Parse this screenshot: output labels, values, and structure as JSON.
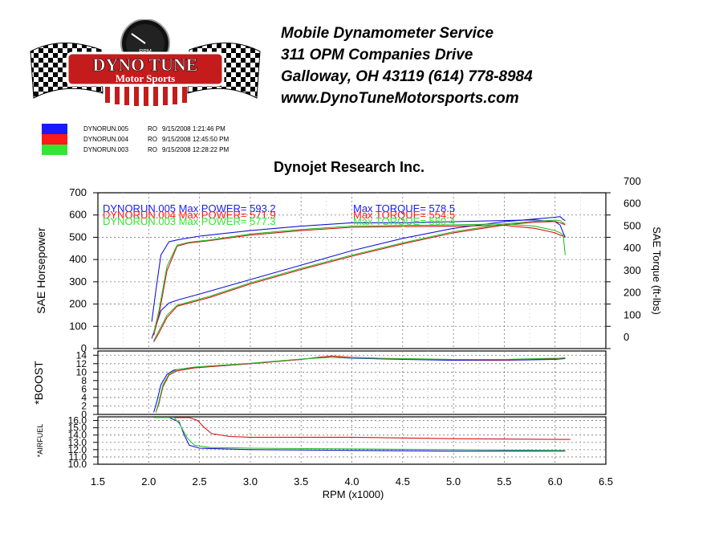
{
  "company": {
    "name": "Mobile Dynamometer Service",
    "address1": "311 OPM Companies Drive",
    "address2": "Galloway, OH  43119   (614)  778-8984",
    "website": "www.DynoTuneMotorsports.com"
  },
  "logo": {
    "line1": "DYNO TUNE",
    "line2": "Motor Sports",
    "gauge_label": "RPM",
    "gauge_ticks": [
      "0",
      "1",
      "2",
      "3",
      "4",
      "5",
      "6",
      "7",
      "8",
      "9",
      "10"
    ]
  },
  "legend": [
    {
      "run": "DYNORUN.005",
      "mode": "RO",
      "timestamp": "9/15/2008 1:21:46 PM",
      "color": "#1a1aff"
    },
    {
      "run": "DYNORUN.004",
      "mode": "RO",
      "timestamp": "9/15/2008 12:45:50 PM",
      "color": "#ff1a1a"
    },
    {
      "run": "DYNORUN.003",
      "mode": "RO",
      "timestamp": "9/15/2008 12:28:22 PM",
      "color": "#33e633"
    }
  ],
  "chart_data": {
    "type": "line",
    "title": "Dynojet  Research  Inc.",
    "xlabel": "RPM (x1000)",
    "x_ticks": [
      "1.5",
      "2.0",
      "2.5",
      "3.0",
      "3.5",
      "4.0",
      "4.5",
      "5.0",
      "5.5",
      "6.0",
      "6.5"
    ],
    "xlim": [
      1.5,
      6.5
    ],
    "colors": {
      "run005": "#1a1aff",
      "run004": "#ff1a1a",
      "run003": "#33e633"
    },
    "annotations": [
      {
        "text": "DYNORUN.005  Max POWER= 593.2",
        "torque": "Max TORQUE= 578.5",
        "color": "#1a1aff"
      },
      {
        "text": "DYNORUN.004  Max POWER= 571.9",
        "torque": "Max TORQUE= 554.5",
        "color": "#ff1a1a"
      },
      {
        "text": "DYNORUN.003  Max POWER= 577.3",
        "torque": "Max TORQUE= 560.4",
        "color": "#33e633"
      }
    ],
    "panels": [
      {
        "id": "power",
        "ylabel": "SAE Horsepower",
        "ylabel_right": "SAE Torque (ft-lbs)",
        "ylim": [
          0,
          700
        ],
        "y_ticks": [
          "0",
          "100",
          "200",
          "300",
          "400",
          "500",
          "600",
          "700"
        ],
        "series": [
          {
            "name": "DYNORUN.005",
            "kind": "torque",
            "x": [
              2.03,
              2.07,
              2.12,
              2.2,
              2.3,
              2.5,
              3.0,
              3.5,
              4.0,
              4.5,
              5.0,
              5.5,
              5.8,
              6.0,
              6.05,
              6.08,
              6.1
            ],
            "y": [
              120,
              260,
              420,
              480,
              490,
              505,
              530,
              550,
              565,
              565,
              570,
              575,
              578,
              570,
              555,
              520,
              500
            ]
          },
          {
            "name": "DYNORUN.005",
            "kind": "power",
            "x": [
              2.03,
              2.07,
              2.12,
              2.2,
              2.3,
              2.5,
              3.0,
              3.5,
              4.0,
              4.5,
              5.0,
              5.5,
              5.8,
              6.0,
              6.05,
              6.08,
              6.1
            ],
            "y": [
              45,
              100,
              170,
              205,
              220,
              245,
              310,
              375,
              440,
              495,
              540,
              570,
              582,
              590,
              593,
              580,
              575
            ]
          },
          {
            "name": "DYNORUN.004",
            "kind": "torque",
            "x": [
              2.05,
              2.1,
              2.18,
              2.28,
              2.4,
              2.6,
              3.0,
              3.5,
              4.0,
              4.5,
              5.0,
              5.5,
              5.8,
              6.0,
              6.05,
              6.08,
              6.1
            ],
            "y": [
              60,
              150,
              350,
              460,
              475,
              485,
              510,
              530,
              545,
              548,
              550,
              554,
              540,
              520,
              510,
              505,
              500
            ]
          },
          {
            "name": "DYNORUN.004",
            "kind": "power",
            "x": [
              2.05,
              2.1,
              2.18,
              2.28,
              2.4,
              2.6,
              3.0,
              3.5,
              4.0,
              4.5,
              5.0,
              5.5,
              5.8,
              6.0,
              6.05,
              6.08,
              6.1
            ],
            "y": [
              30,
              70,
              140,
              190,
              205,
              230,
              290,
              355,
              415,
              470,
              520,
              555,
              568,
              571,
              565,
              560,
              555
            ]
          },
          {
            "name": "DYNORUN.003",
            "kind": "torque",
            "x": [
              2.05,
              2.1,
              2.18,
              2.28,
              2.4,
              2.6,
              3.0,
              3.5,
              4.0,
              4.5,
              5.0,
              5.5,
              5.8,
              6.0,
              6.05,
              6.08,
              6.1
            ],
            "y": [
              70,
              170,
              370,
              465,
              478,
              488,
              515,
              535,
              550,
              553,
              556,
              560,
              550,
              530,
              520,
              510,
              420
            ]
          },
          {
            "name": "DYNORUN.003",
            "kind": "power",
            "x": [
              2.05,
              2.1,
              2.18,
              2.28,
              2.4,
              2.6,
              3.0,
              3.5,
              4.0,
              4.5,
              5.0,
              5.5,
              5.8,
              6.0,
              6.05,
              6.08,
              6.1
            ],
            "y": [
              35,
              80,
              150,
              195,
              210,
              235,
              295,
              360,
              420,
              475,
              525,
              560,
              572,
              577,
              575,
              565,
              560
            ]
          }
        ]
      },
      {
        "id": "boost",
        "ylabel": "*BOOST",
        "ylim": [
          0,
          15
        ],
        "y_ticks": [
          "0",
          "2",
          "4",
          "6",
          "8",
          "10",
          "12",
          "14"
        ],
        "series": [
          {
            "name": "DYNORUN.005",
            "x": [
              2.05,
              2.08,
              2.12,
              2.18,
              2.25,
              2.4,
              3.0,
              3.5,
              3.7,
              4.0,
              4.5,
              5.0,
              5.5,
              6.0,
              6.1
            ],
            "y": [
              0.5,
              3,
              7,
              9.5,
              10.5,
              11,
              12,
              13,
              13.6,
              13.3,
              13,
              12.8,
              12.8,
              13,
              13.2
            ]
          },
          {
            "name": "DYNORUN.004",
            "x": [
              2.07,
              2.1,
              2.14,
              2.2,
              2.28,
              2.45,
              3.0,
              3.5,
              3.8,
              4.0,
              4.5,
              5.0,
              5.5,
              6.0,
              6.1
            ],
            "y": [
              0.5,
              2.5,
              6.5,
              9.3,
              10.3,
              11,
              12,
              13,
              13.8,
              13.5,
              13.1,
              13,
              12.9,
              13.2,
              13.4
            ]
          },
          {
            "name": "DYNORUN.003",
            "x": [
              2.07,
              2.1,
              2.14,
              2.2,
              2.28,
              2.45,
              3.0,
              3.5,
              3.8,
              4.0,
              4.5,
              5.0,
              5.5,
              6.0,
              6.1
            ],
            "y": [
              0.5,
              3,
              7,
              9.6,
              10.6,
              11.2,
              12.1,
              13.1,
              13.5,
              13.4,
              13.2,
              13,
              13,
              13.3,
              13.3
            ]
          }
        ]
      },
      {
        "id": "airfuel",
        "ylabel": "*AIRFUEL",
        "ylim": [
          10,
          16.5
        ],
        "y_ticks": [
          "10.0",
          "11.0",
          "12.0",
          "13.0",
          "14.0",
          "15.0",
          "16.0"
        ],
        "series": [
          {
            "name": "DYNORUN.005",
            "x": [
              2.05,
              2.2,
              2.3,
              2.35,
              2.4,
              2.5,
              3.0,
              4.0,
              5.0,
              6.0,
              6.1
            ],
            "y": [
              16.4,
              16.4,
              15.8,
              14,
              12.6,
              12.2,
              12.0,
              11.9,
              11.8,
              11.8,
              11.8
            ]
          },
          {
            "name": "DYNORUN.004",
            "x": [
              2.05,
              2.4,
              2.48,
              2.55,
              2.62,
              2.8,
              3.0,
              4.0,
              5.0,
              6.0,
              6.15
            ],
            "y": [
              16.4,
              16.4,
              16,
              15,
              14.2,
              13.8,
              13.7,
              13.7,
              13.5,
              13.4,
              13.4
            ]
          },
          {
            "name": "DYNORUN.003",
            "x": [
              2.05,
              2.25,
              2.3,
              2.38,
              2.45,
              2.6,
              3.0,
              4.0,
              5.0,
              6.0,
              6.1
            ],
            "y": [
              16.4,
              16.4,
              15.6,
              13.6,
              12.6,
              12.3,
              12.2,
              12.1,
              12.0,
              11.9,
              11.9
            ]
          }
        ]
      }
    ]
  }
}
